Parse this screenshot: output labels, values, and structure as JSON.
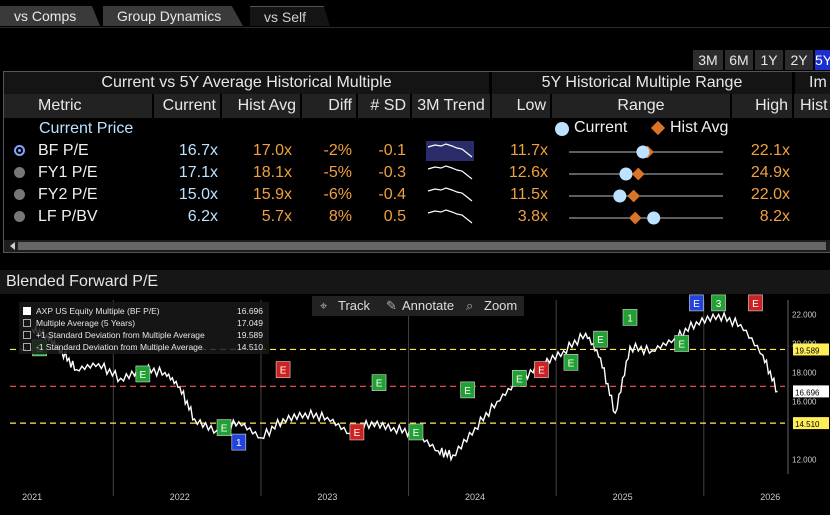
{
  "tabs": [
    "vs Comps",
    "Group Dynamics",
    "vs Self"
  ],
  "periods": [
    "3M",
    "6M",
    "1Y",
    "2Y",
    "5Y"
  ],
  "selected_period": "5Y",
  "table": {
    "group_left": "Current vs 5Y Average Historical Multiple",
    "group_mid": "5Y Historical Multiple Range",
    "group_right": "Im",
    "columns": {
      "metric": "Metric",
      "current": "Current",
      "hist_avg": "Hist Avg",
      "diff": "Diff",
      "sd": "# SD",
      "trend": "3M Trend",
      "low": "Low",
      "range": "Range",
      "high": "High",
      "hist": "Hist"
    },
    "current_price_label": "Current Price",
    "legend_current": "Current",
    "legend_hist_avg": "Hist Avg",
    "rows": [
      {
        "metric": "BF P/E",
        "current": "16.7x",
        "hist_avg": "17.0x",
        "diff": "-2%",
        "sd": "-0.1",
        "low": "11.7x",
        "high": "22.1x",
        "cur_frac": 0.48,
        "avg_frac": 0.51,
        "selected": true
      },
      {
        "metric": "FY1 P/E",
        "current": "17.1x",
        "hist_avg": "18.1x",
        "diff": "-5%",
        "sd": "-0.3",
        "low": "12.6x",
        "high": "24.9x",
        "cur_frac": 0.37,
        "avg_frac": 0.45,
        "selected": false
      },
      {
        "metric": "FY2 P/E",
        "current": "15.0x",
        "hist_avg": "15.9x",
        "diff": "-6%",
        "sd": "-0.4",
        "low": "11.5x",
        "high": "22.0x",
        "cur_frac": 0.33,
        "avg_frac": 0.42,
        "selected": false
      },
      {
        "metric": "LF P/BV",
        "current": "6.2x",
        "hist_avg": "5.7x",
        "diff": "8%",
        "sd": "0.5",
        "low": "3.8x",
        "high": "8.2x",
        "cur_frac": 0.55,
        "avg_frac": 0.43,
        "selected": false
      }
    ]
  },
  "chart_title": "Blended Forward P/E",
  "toolbar": {
    "track": "Track",
    "annotate": "Annotate",
    "zoom": "Zoom"
  },
  "legend": [
    {
      "label": "AXP US Equity Multiple (BF P/E)",
      "value": "16.696"
    },
    {
      "label": "Multiple Average (5 Years)",
      "value": "17.049"
    },
    {
      "label": "+1 Standard Deviation from Multiple Average",
      "value": "19.589"
    },
    {
      "label": "-1 Standard Deviation from Multiple Average",
      "value": "14.510"
    }
  ],
  "chart_data": {
    "type": "line",
    "title": "Blended Forward P/E",
    "x_labels": [
      "2021",
      "2022",
      "2023",
      "2024",
      "2025",
      "2026"
    ],
    "y_ticks": [
      "22.000",
      "20.000",
      "18.000",
      "16.000",
      "12.000"
    ],
    "ylim": [
      11,
      23
    ],
    "series": [
      {
        "name": "AXP US Equity Multiple (BF P/E)",
        "color": "#ffffff",
        "x": [
          2021.0,
          2021.1,
          2021.2,
          2021.3,
          2021.45,
          2021.6,
          2021.75,
          2021.9,
          2022.0,
          2022.1,
          2022.25,
          2022.4,
          2022.55,
          2022.7,
          2022.85,
          2023.0,
          2023.15,
          2023.3,
          2023.45,
          2023.6,
          2023.75,
          2023.85,
          2024.0,
          2024.15,
          2024.3,
          2024.45,
          2024.6,
          2024.75,
          2024.85,
          2024.95,
          2025.05,
          2025.2,
          2025.35,
          2025.5,
          2025.65,
          2025.8,
          2025.95,
          2026.05
        ],
        "values": [
          21.0,
          20.6,
          19.5,
          18.2,
          18.6,
          17.6,
          18.3,
          18.0,
          17.0,
          14.8,
          14.0,
          14.6,
          13.5,
          14.8,
          15.2,
          14.9,
          13.8,
          14.6,
          14.2,
          13.8,
          12.6,
          12.3,
          14.2,
          16.0,
          17.5,
          18.6,
          19.5,
          20.7,
          19.0,
          15.2,
          19.8,
          19.5,
          20.3,
          21.5,
          22.0,
          21.3,
          19.2,
          16.7
        ]
      },
      {
        "name": "Multiple Average (5 Years)",
        "color": "#ff5555",
        "values": [
          17.049
        ]
      },
      {
        "name": "+1 Standard Deviation from Multiple Average",
        "color": "#ffee55",
        "values": [
          19.589
        ]
      },
      {
        "name": "-1 Standard Deviation from Multiple Average",
        "color": "#ffee55",
        "values": [
          14.51
        ]
      }
    ],
    "event_markers": [
      "E",
      "E",
      "1",
      "E",
      "E",
      "E",
      "E",
      "E",
      "E",
      "E",
      "E",
      "E",
      "E",
      "E",
      "E",
      "1",
      "3",
      "E"
    ],
    "right_labels": [
      "16.696",
      "19.589",
      "14.510"
    ]
  },
  "colors": {
    "accent": "#1b2fd0",
    "current_dot": "#bde2ff",
    "hist_avg_diamond": "#d8752a",
    "avg_line": "#ff5555",
    "sd_line": "#ffee55",
    "orange_text": "#f0a040"
  }
}
